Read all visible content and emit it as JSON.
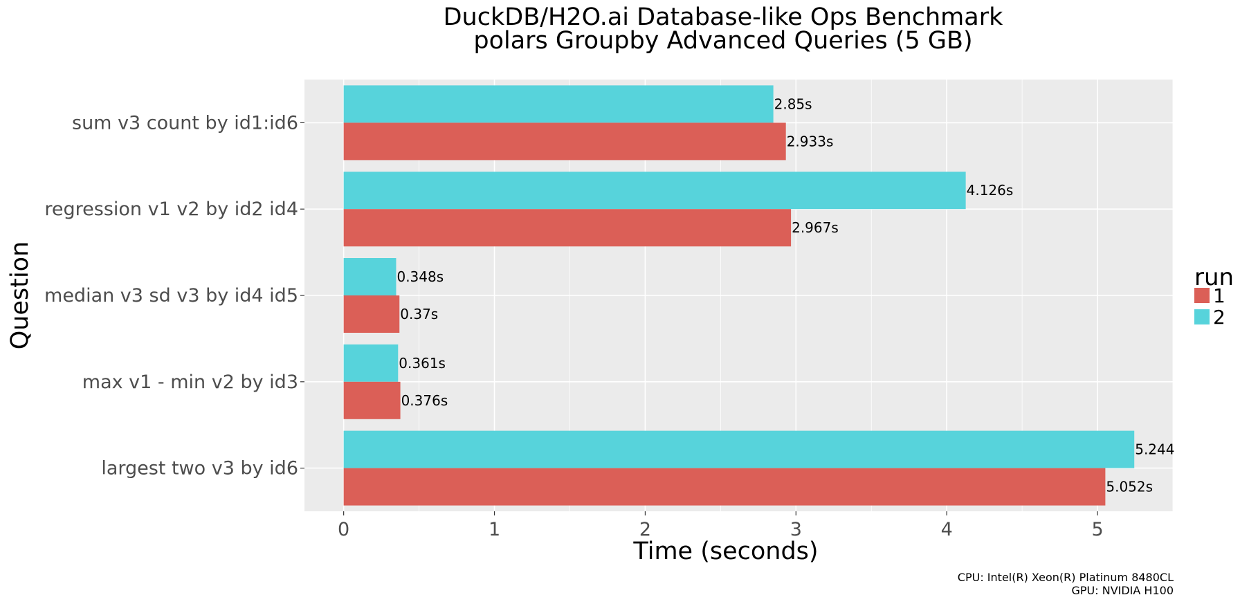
{
  "chart_data": {
    "type": "bar",
    "orientation": "horizontal",
    "title": "DuckDB/H2O.ai Database-like Ops Benchmark",
    "subtitle": "polars Groupby Advanced Queries (5 GB)",
    "xlabel": "Time (seconds)",
    "ylabel": "Question",
    "xlim": [
      -0.26,
      5.5
    ],
    "xticks": [
      0,
      1,
      2,
      3,
      4,
      5
    ],
    "xtick_labels": [
      "0",
      "1",
      "2",
      "3",
      "4",
      "5"
    ],
    "grid": true,
    "legend_title": "run",
    "legend_position": "right",
    "categories": [
      "sum v3 count by id1:id6",
      "regression v1 v2 by id2 id4",
      "median v3 sd v3 by id4 id5",
      "max v1 - min v2 by id3",
      "largest two v3 by id6"
    ],
    "series": [
      {
        "name": "2",
        "color": "#57D3DB",
        "values": [
          2.85,
          4.126,
          0.348,
          0.361,
          5.244
        ],
        "labels": [
          "2.85s",
          "4.126s",
          "0.348s",
          "0.361s",
          "5.244"
        ]
      },
      {
        "name": "1",
        "color": "#DB5F57",
        "values": [
          2.933,
          2.967,
          0.37,
          0.376,
          5.052
        ],
        "labels": [
          "2.933s",
          "2.967s",
          "0.37s",
          "0.376s",
          "5.052s"
        ]
      }
    ],
    "legend_order": [
      "1",
      "2"
    ],
    "caption": [
      "CPU: Intel(R) Xeon(R) Platinum 8480CL",
      "GPU: NVIDIA H100"
    ]
  }
}
